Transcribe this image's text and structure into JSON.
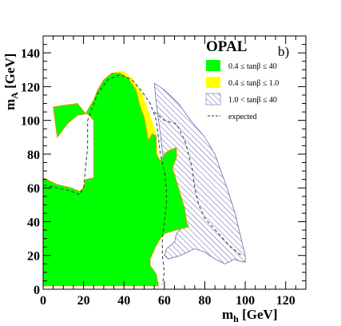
{
  "chart_data": {
    "type": "area",
    "title": "",
    "logo": "OPAL",
    "panel_label": "b)",
    "xlabel": {
      "main": "m",
      "sub": "h",
      "unit": " [GeV]"
    },
    "ylabel": {
      "main": "m",
      "sub": "A",
      "unit": " [GeV]"
    },
    "xlim": [
      0,
      130
    ],
    "ylim": [
      0,
      150
    ],
    "x_ticks": [
      0,
      20,
      40,
      60,
      80,
      100,
      120
    ],
    "y_ticks": [
      0,
      20,
      40,
      60,
      80,
      100,
      120,
      140
    ],
    "grid": false,
    "legend_position": "top-right",
    "colors": {
      "green": "#00ff00",
      "yellow": "#ffff00",
      "hatch": "#6a6ab4",
      "expected": "#333333",
      "edge": "#ff8c00"
    },
    "legend": [
      {
        "key": "green",
        "style": "fill",
        "label": "0.4 ≤ tanβ ≤ 40"
      },
      {
        "key": "yellow",
        "style": "fill",
        "label": "0.4 ≤ tanβ ≤ 1.0"
      },
      {
        "key": "hatch",
        "style": "hatch",
        "label": "1.0 < tanβ ≤ 40"
      },
      {
        "key": "expected",
        "style": "dash",
        "label": "expected"
      }
    ],
    "regions": {
      "hatched": [
        [
          55,
          122
        ],
        [
          56,
          110
        ],
        [
          58,
          92
        ],
        [
          60,
          72
        ],
        [
          62,
          60
        ],
        [
          65,
          50
        ],
        [
          68,
          45
        ],
        [
          70,
          38
        ],
        [
          66,
          33
        ],
        [
          65,
          28
        ],
        [
          61,
          24
        ],
        [
          60,
          20
        ],
        [
          62,
          18
        ],
        [
          68,
          20
        ],
        [
          75,
          24
        ],
        [
          80,
          22
        ],
        [
          85,
          18
        ],
        [
          90,
          15
        ],
        [
          95,
          18
        ],
        [
          96,
          17
        ],
        [
          100,
          16
        ],
        [
          100,
          20
        ],
        [
          98,
          30
        ],
        [
          95,
          45
        ],
        [
          91,
          60
        ],
        [
          88,
          70
        ],
        [
          85,
          80
        ],
        [
          80,
          90
        ],
        [
          73,
          100
        ],
        [
          67,
          110
        ],
        [
          60,
          118
        ],
        [
          55,
          122
        ]
      ],
      "yellow": [
        [
          32,
          126
        ],
        [
          36,
          129
        ],
        [
          40,
          129
        ],
        [
          44,
          125
        ],
        [
          49,
          116
        ],
        [
          52,
          106
        ],
        [
          55,
          96
        ],
        [
          56,
          88
        ],
        [
          57,
          80
        ],
        [
          58,
          70
        ],
        [
          52,
          70
        ],
        [
          50,
          90
        ],
        [
          48,
          106
        ],
        [
          44,
          118
        ],
        [
          38,
          125
        ],
        [
          32,
          126
        ]
      ],
      "green": [
        [
          0,
          2
        ],
        [
          0,
          66
        ],
        [
          7,
          62
        ],
        [
          14,
          60
        ],
        [
          18,
          58
        ],
        [
          20,
          60
        ],
        [
          21,
          65
        ],
        [
          25,
          66
        ],
        [
          25,
          100
        ],
        [
          22,
          104
        ],
        [
          17,
          103
        ],
        [
          12,
          98
        ],
        [
          7,
          90
        ],
        [
          5,
          108
        ],
        [
          17,
          110
        ],
        [
          21,
          104
        ],
        [
          25,
          112
        ],
        [
          27,
          118
        ],
        [
          30,
          124
        ],
        [
          34,
          128
        ],
        [
          38,
          128
        ],
        [
          42,
          125
        ],
        [
          46,
          118
        ],
        [
          48,
          108
        ],
        [
          50,
          102
        ],
        [
          51,
          95
        ],
        [
          52,
          88
        ],
        [
          54,
          92
        ],
        [
          56,
          91
        ],
        [
          56,
          80
        ],
        [
          58,
          76
        ],
        [
          60,
          80
        ],
        [
          62,
          82
        ],
        [
          66,
          84
        ],
        [
          66,
          78
        ],
        [
          64,
          72
        ],
        [
          66,
          64
        ],
        [
          68,
          56
        ],
        [
          70,
          48
        ],
        [
          71,
          40
        ],
        [
          72,
          37
        ],
        [
          66,
          35
        ],
        [
          60,
          33
        ],
        [
          58,
          30
        ],
        [
          56,
          26
        ],
        [
          53,
          18
        ],
        [
          53,
          14
        ],
        [
          56,
          9
        ],
        [
          57,
          2
        ],
        [
          0,
          2
        ]
      ],
      "expected": [
        [
          0,
          3
        ],
        [
          0,
          62
        ],
        [
          7,
          60
        ],
        [
          14,
          58
        ],
        [
          18,
          56
        ],
        [
          20,
          60
        ],
        [
          22,
          84
        ],
        [
          22,
          100
        ],
        [
          27,
          116
        ],
        [
          32,
          124
        ],
        [
          38,
          127
        ],
        [
          44,
          124
        ],
        [
          49,
          117
        ],
        [
          53,
          110
        ],
        [
          56,
          100
        ],
        [
          57,
          90
        ],
        [
          58,
          80
        ],
        [
          60,
          70
        ],
        [
          61,
          60
        ],
        [
          61,
          50
        ],
        [
          60,
          40
        ],
        [
          59,
          30
        ],
        [
          59,
          20
        ],
        [
          60,
          10
        ],
        [
          59,
          3
        ]
      ],
      "expected_outer": [
        [
          55,
          105
        ],
        [
          60,
          100
        ],
        [
          66,
          98
        ],
        [
          70,
          88
        ],
        [
          72,
          80
        ],
        [
          74,
          70
        ],
        [
          75,
          60
        ],
        [
          77,
          50
        ],
        [
          80,
          42
        ],
        [
          86,
          34
        ],
        [
          92,
          26
        ],
        [
          98,
          20
        ]
      ]
    }
  }
}
